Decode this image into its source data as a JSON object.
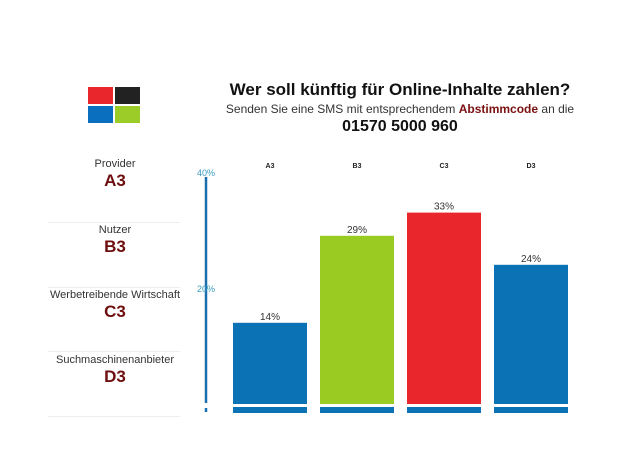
{
  "header": {
    "title": "Wer soll künftig für Online-Inhalte zahlen?",
    "subtitle_pre": "Senden Sie eine SMS mit entsprechendem ",
    "subtitle_bold": "Abstimmcode",
    "subtitle_post": " an die",
    "phone": "01570 5000 960"
  },
  "logo": {
    "colors": [
      "#e8262b",
      "#222222",
      "#0a6fbf",
      "#9ccc28"
    ]
  },
  "options": [
    {
      "name": "Provider",
      "code": "A3"
    },
    {
      "name": "Nutzer",
      "code": "B3"
    },
    {
      "name": "Werbetreibende Wirtschaft",
      "code": "C3"
    },
    {
      "name": "Suchmaschinenanbieter",
      "code": "D3"
    }
  ],
  "chart_data": {
    "type": "bar",
    "categories": [
      "A3",
      "B3",
      "C3",
      "D3"
    ],
    "values": [
      14,
      29,
      33,
      24
    ],
    "value_labels": [
      "14%",
      "29%",
      "33%",
      "24%"
    ],
    "colors": [
      "#0a72b5",
      "#9acb23",
      "#e8262b",
      "#0a72b5"
    ],
    "ylim": [
      0,
      40
    ],
    "yticks": [
      {
        "value": 20,
        "label": "20%"
      },
      {
        "value": 40,
        "label": "40%"
      }
    ],
    "axis_color": "#1a6fae",
    "tick_label_color": "#3a9cc0",
    "grid": false
  }
}
